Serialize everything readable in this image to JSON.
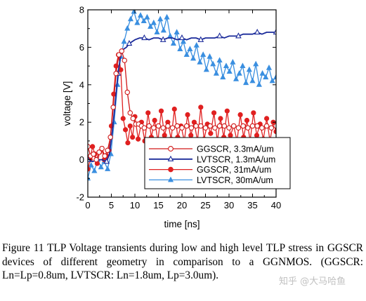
{
  "chart_data": {
    "type": "line",
    "xlabel": "time [ns]",
    "ylabel": "voltage [V]",
    "xlim": [
      0,
      40
    ],
    "ylim": [
      -2,
      8
    ],
    "xticks": [
      0,
      5,
      10,
      15,
      20,
      25,
      30,
      35,
      40
    ],
    "yticks": [
      -2,
      0,
      2,
      4,
      6,
      8
    ],
    "legend_position": "lower-right",
    "series": [
      {
        "name": "GGSCR, 3.3mA/um",
        "color": "#d01818",
        "marker": "open-circle",
        "x": [
          0,
          0.6,
          1.2,
          1.8,
          2.4,
          3,
          3.6,
          4.2,
          4.8,
          5.4,
          6,
          6.6,
          7.2,
          7.8,
          8.4,
          9,
          9.6,
          10.2,
          10.8,
          11.4,
          12,
          13,
          14,
          15,
          16,
          17,
          18,
          19,
          20,
          21,
          22,
          23,
          24,
          25,
          26,
          27,
          28,
          29,
          30,
          31,
          32,
          33,
          34,
          35,
          36,
          37,
          38,
          39,
          40
        ],
        "y": [
          0.7,
          0.2,
          0.3,
          0.0,
          0.4,
          0.6,
          0.2,
          0.5,
          1.2,
          2.8,
          4.6,
          5.6,
          5.8,
          5.3,
          3.6,
          2.5,
          2.2,
          1.9,
          1.9,
          1.8,
          1.7,
          1.8,
          1.7,
          1.8,
          1.7,
          1.8,
          1.7,
          1.8,
          1.7,
          1.8,
          1.7,
          1.8,
          1.8,
          1.7,
          1.8,
          1.7,
          1.8,
          1.8,
          1.7,
          1.8,
          1.7,
          1.8,
          1.7,
          1.8,
          1.8,
          1.7,
          1.8,
          1.7,
          1.8
        ]
      },
      {
        "name": "LVTSCR, 1.3mA/um",
        "color": "#1a2a9a",
        "marker": "open-triangle",
        "x": [
          0,
          1,
          2,
          3,
          4,
          4.6,
          5.2,
          5.8,
          6.4,
          7,
          7.6,
          8.2,
          8.8,
          9.4,
          10,
          11,
          12,
          13,
          14,
          15,
          16,
          17,
          18,
          19,
          20,
          21,
          22,
          23,
          24,
          25,
          26,
          27,
          28,
          29,
          30,
          31,
          32,
          33,
          34,
          35,
          36,
          37,
          38,
          39,
          40
        ],
        "y": [
          0.0,
          -0.1,
          0.0,
          0.0,
          -0.1,
          0.3,
          1.5,
          3.0,
          4.6,
          5.6,
          5.9,
          6.0,
          6.2,
          6.3,
          6.4,
          6.5,
          6.5,
          6.4,
          6.5,
          6.5,
          6.4,
          6.5,
          6.5,
          6.4,
          6.5,
          6.4,
          6.5,
          6.5,
          6.4,
          6.5,
          6.5,
          6.5,
          6.6,
          6.5,
          6.6,
          6.6,
          6.6,
          6.7,
          6.7,
          6.7,
          6.8,
          6.7,
          6.8,
          6.8,
          6.8
        ]
      },
      {
        "name": "GGSCR, 31mA/um",
        "color": "#e02020",
        "marker": "filled-circle",
        "x": [
          0,
          0.5,
          1,
          1.5,
          2,
          2.5,
          3,
          3.5,
          4,
          4.5,
          5,
          5.5,
          6,
          6.5,
          7,
          7.5,
          8,
          8.5,
          9,
          9.5,
          10,
          10.7,
          11.4,
          12.1,
          12.8,
          13.5,
          14.2,
          14.9,
          15.6,
          16.3,
          17,
          17.7,
          18.4,
          19.1,
          19.8,
          20.5,
          21.2,
          21.9,
          22.6,
          23.3,
          24,
          24.7,
          25.4,
          26.1,
          26.8,
          27.5,
          28.2,
          28.9,
          29.6,
          30.3,
          31,
          31.7,
          32.4,
          33.1,
          33.8,
          34.5,
          35.2,
          35.9,
          36.6,
          37.3,
          38,
          38.7,
          39.4,
          40
        ],
        "y": [
          -0.5,
          0.0,
          0.7,
          0.3,
          -0.2,
          0.4,
          0.6,
          0.0,
          0.2,
          0.5,
          1.8,
          3.5,
          5.0,
          5.6,
          4.8,
          2.2,
          1.6,
          0.9,
          1.8,
          1.2,
          2.3,
          1.1,
          2.0,
          1.0,
          2.5,
          1.2,
          2.1,
          1.0,
          2.6,
          1.3,
          2.0,
          1.1,
          2.7,
          1.2,
          1.8,
          1.0,
          2.4,
          1.3,
          2.0,
          1.0,
          2.8,
          1.1,
          1.9,
          1.4,
          2.5,
          1.0,
          2.2,
          1.2,
          2.6,
          1.3,
          1.8,
          1.0,
          2.4,
          1.2,
          2.1,
          1.0,
          2.5,
          1.3,
          1.9,
          1.1,
          2.2,
          1.0,
          2.0,
          1.5
        ]
      },
      {
        "name": "LVTSCR, 30mA/um",
        "color": "#3a8fe0",
        "marker": "filled-triangle",
        "x": [
          0,
          0.7,
          1.4,
          2.1,
          2.8,
          3.5,
          4.2,
          4.9,
          5.6,
          6.3,
          7,
          7.7,
          8.4,
          9.1,
          9.8,
          10.5,
          11.2,
          11.9,
          12.6,
          13.3,
          14,
          14.7,
          15.4,
          16.1,
          16.8,
          17.5,
          18.2,
          18.9,
          19.6,
          20.3,
          21,
          21.7,
          22.4,
          23.1,
          23.8,
          24.5,
          25.2,
          25.9,
          26.6,
          27.3,
          28,
          28.7,
          29.4,
          30.1,
          30.8,
          31.5,
          32.2,
          32.9,
          33.6,
          34.3,
          35,
          35.7,
          36.4,
          37.1,
          37.8,
          38.5,
          39.2,
          40
        ],
        "y": [
          -1.0,
          -0.3,
          -0.6,
          0.0,
          -0.4,
          -0.1,
          -0.5,
          0.3,
          2.0,
          4.0,
          5.5,
          6.3,
          7.0,
          7.5,
          7.9,
          7.3,
          7.7,
          7.4,
          7.6,
          7.1,
          7.3,
          6.8,
          7.5,
          6.9,
          7.6,
          6.6,
          6.2,
          6.8,
          5.9,
          6.3,
          5.6,
          5.9,
          5.4,
          6.1,
          5.2,
          5.6,
          4.8,
          5.5,
          5.1,
          4.6,
          5.3,
          4.4,
          5.0,
          4.7,
          5.2,
          4.3,
          4.6,
          5.0,
          4.1,
          4.8,
          4.2,
          5.1,
          4.0,
          4.6,
          4.4,
          4.9,
          4.2,
          4.4
        ]
      }
    ]
  },
  "caption": {
    "text": "Figure 11   TLP Voltage transients during low and high level TLP stress in GGSCR devices of different geometry in comparison to a GGNMOS. (GGSCR: Ln=Lp=0.8um, LVTSCR: Ln=1.8um, Lp=3.0um)."
  },
  "watermark": {
    "text": "知乎 @大马哈鱼"
  }
}
